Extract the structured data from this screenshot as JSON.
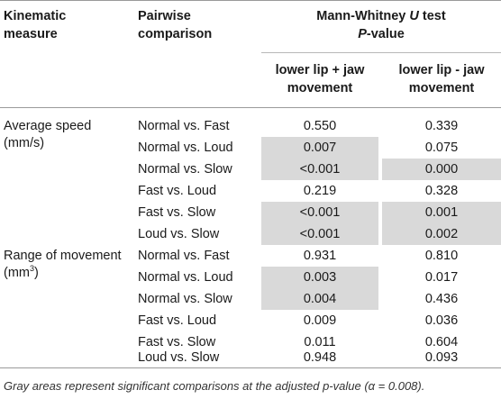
{
  "header": {
    "col1": "Kinematic measure",
    "col1_line1": "Kinematic",
    "col1_line2": "measure",
    "col2_line1": "Pairwise",
    "col2_line2": "comparison",
    "test_line1_a": "Mann-Whitney ",
    "test_line1_b": "U",
    "test_line1_c": " test",
    "test_line2_a": "P",
    "test_line2_b": "-value",
    "sub1_line1": "lower lip + jaw",
    "sub1_line2": "movement",
    "sub2_line1": "lower lip - jaw",
    "sub2_line2": "movement"
  },
  "groups": [
    {
      "measure_line1": "Average speed",
      "measure_line2": "(mm/s)",
      "rows": [
        {
          "comparison": "Normal vs. Fast",
          "with_jaw": "0.550",
          "without_jaw": "0.339",
          "sig_with": false,
          "sig_without": false
        },
        {
          "comparison": "Normal vs. Loud",
          "with_jaw": "0.007",
          "without_jaw": "0.075",
          "sig_with": true,
          "sig_without": false
        },
        {
          "comparison": "Normal vs. Slow",
          "with_jaw": "<0.001",
          "without_jaw": "0.000",
          "sig_with": true,
          "sig_without": true
        },
        {
          "comparison": "Fast vs. Loud",
          "with_jaw": "0.219",
          "without_jaw": "0.328",
          "sig_with": false,
          "sig_without": false
        },
        {
          "comparison": "Fast vs. Slow",
          "with_jaw": "<0.001",
          "without_jaw": "0.001",
          "sig_with": true,
          "sig_without": true
        },
        {
          "comparison": "Loud vs. Slow",
          "with_jaw": "<0.001",
          "without_jaw": "0.002",
          "sig_with": true,
          "sig_without": true
        }
      ]
    },
    {
      "measure_line1": "Range of movement",
      "measure_line2_base": "(mm",
      "measure_line2_sup": "3",
      "measure_line2_end": ")",
      "rows": [
        {
          "comparison": "Normal vs. Fast",
          "with_jaw": "0.931",
          "without_jaw": "0.810",
          "sig_with": false,
          "sig_without": false
        },
        {
          "comparison": "Normal vs. Loud",
          "with_jaw": "0.003",
          "without_jaw": "0.017",
          "sig_with": true,
          "sig_without": false
        },
        {
          "comparison": "Normal vs. Slow",
          "with_jaw": "0.004",
          "without_jaw": "0.436",
          "sig_with": true,
          "sig_without": false
        },
        {
          "comparison": "Fast vs. Loud",
          "with_jaw": "0.009",
          "without_jaw": "0.036",
          "sig_with": false,
          "sig_without": false
        },
        {
          "comparison": "Fast vs. Slow",
          "with_jaw": "0.011",
          "without_jaw": "0.604",
          "sig_with": false,
          "sig_without": false
        },
        {
          "comparison": "Loud vs. Slow",
          "with_jaw": "0.948",
          "without_jaw": "0.093",
          "sig_with": false,
          "sig_without": false
        }
      ]
    }
  ],
  "footnote": "Gray areas represent significant comparisons at the adjusted p-value (α = 0.008).",
  "colors": {
    "shade": "#d9d9d9",
    "rule": "#9a9a9a"
  }
}
